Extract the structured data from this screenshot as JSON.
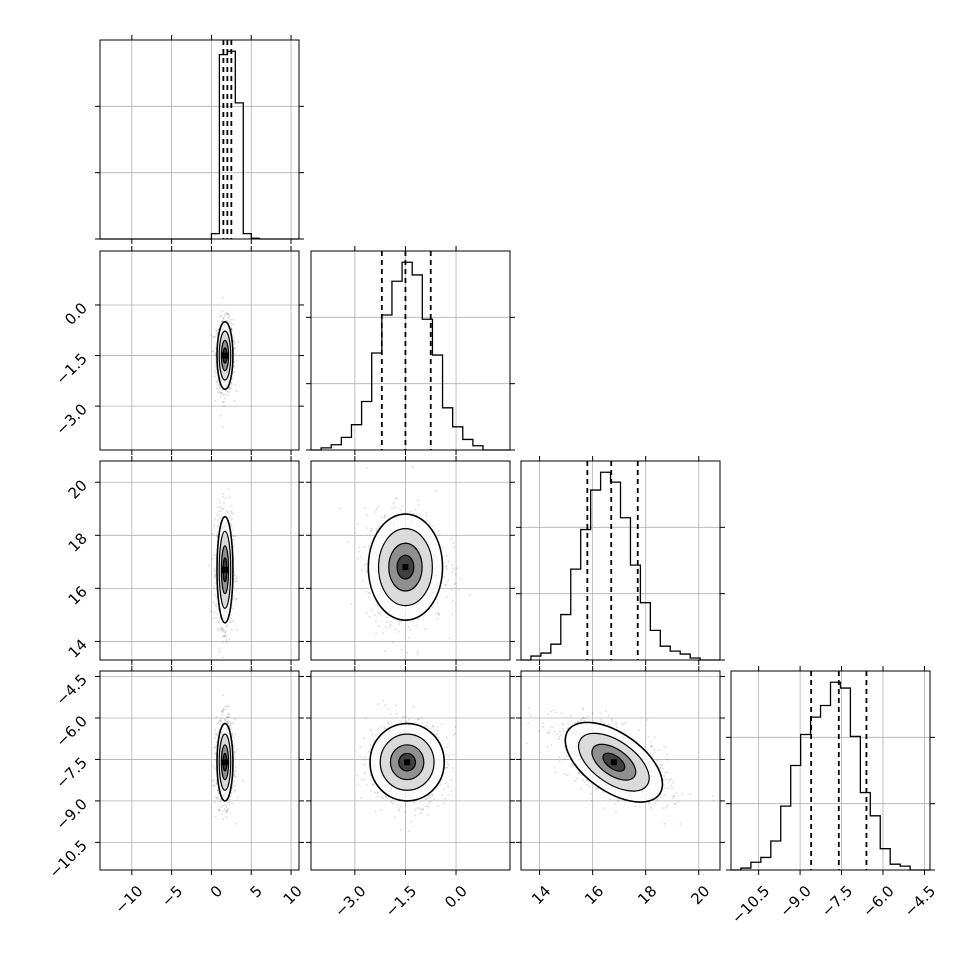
{
  "chart_data": {
    "type": "corner",
    "grid": true,
    "params": [
      {
        "range": [
          -14,
          11
        ],
        "ticks": [
          -10,
          -5,
          0,
          5,
          10
        ],
        "tick_labels": [
          "−10",
          "−5",
          "0",
          "5",
          "10"
        ],
        "quantiles": [
          1.5,
          2.0,
          2.5
        ]
      },
      {
        "range": [
          -4.3,
          1.6
        ],
        "ticks": [
          -3.0,
          -1.5,
          0.0
        ],
        "tick_labels": [
          "−3.0",
          "−1.5",
          "0.0"
        ],
        "quantiles": [
          -2.2,
          -1.5,
          -0.75
        ]
      },
      {
        "range": [
          13.3,
          20.8
        ],
        "ticks": [
          14,
          16,
          18,
          20
        ],
        "tick_labels": [
          "14",
          "16",
          "18",
          "20"
        ],
        "quantiles": [
          15.8,
          16.7,
          17.7
        ]
      },
      {
        "range": [
          -11.5,
          -4.3
        ],
        "ticks": [
          -10.5,
          -9.0,
          -7.5,
          -6.0,
          -4.5
        ],
        "tick_labels": [
          "−10.5",
          "−9.0",
          "−7.5",
          "−6.0",
          "−4.5"
        ],
        "quantiles": [
          -8.6,
          -7.6,
          -6.6
        ]
      }
    ],
    "histograms": [
      {
        "edges": [
          -14,
          -13,
          -12,
          -11,
          -10,
          -9,
          -8,
          -7,
          -6,
          -5,
          -4,
          -3,
          -2,
          -1,
          0,
          1,
          2,
          3,
          4,
          5,
          6,
          7,
          8,
          9,
          10,
          11
        ],
        "counts": [
          0,
          0,
          0,
          0,
          0,
          0,
          0,
          0,
          0,
          0,
          0,
          0,
          0,
          0,
          80,
          2750,
          2800,
          2030,
          80,
          10,
          0,
          0,
          0,
          0,
          0
        ]
      },
      {
        "edges": [
          -4.3,
          -4.0,
          -3.7,
          -3.4,
          -3.1,
          -2.8,
          -2.5,
          -2.2,
          -1.9,
          -1.6,
          -1.3,
          -1.0,
          -0.7,
          -0.4,
          -0.1,
          0.2,
          0.5,
          0.8,
          1.1,
          1.4,
          1.6
        ],
        "counts": [
          0,
          10,
          25,
          60,
          120,
          230,
          460,
          640,
          800,
          890,
          830,
          620,
          450,
          200,
          110,
          50,
          20,
          0,
          0,
          0
        ]
      },
      {
        "edges": [
          13.3,
          13.675,
          14.05,
          14.425,
          14.8,
          15.175,
          15.55,
          15.925,
          16.3,
          16.675,
          17.05,
          17.425,
          17.8,
          18.175,
          18.55,
          18.925,
          19.3,
          19.675,
          20.05,
          20.425,
          20.8
        ],
        "counts": [
          0,
          20,
          35,
          80,
          230,
          460,
          660,
          860,
          950,
          900,
          720,
          480,
          290,
          150,
          70,
          45,
          30,
          10,
          0,
          0
        ]
      },
      {
        "edges": [
          -11.5,
          -11.14,
          -10.78,
          -10.42,
          -10.06,
          -9.7,
          -9.34,
          -8.98,
          -8.62,
          -8.26,
          -7.9,
          -7.54,
          -7.18,
          -6.82,
          -6.46,
          -6.1,
          -5.74,
          -5.38,
          -5.02,
          -4.66,
          -4.3
        ],
        "counts": [
          0,
          10,
          40,
          65,
          150,
          330,
          540,
          700,
          790,
          850,
          970,
          940,
          690,
          400,
          280,
          110,
          30,
          20,
          0,
          0
        ]
      }
    ],
    "pairs": [
      {
        "x": 0,
        "y": 1,
        "center": [
          1.7,
          -1.5
        ],
        "sd": [
          0.5,
          0.5
        ],
        "rho": 0.0
      },
      {
        "x": 0,
        "y": 2,
        "center": [
          1.7,
          16.7
        ],
        "sd": [
          0.5,
          1.0
        ],
        "rho": 0.0
      },
      {
        "x": 1,
        "y": 2,
        "center": [
          -1.5,
          16.8
        ],
        "sd": [
          0.55,
          1.0
        ],
        "rho": 0.0
      },
      {
        "x": 0,
        "y": 3,
        "center": [
          1.7,
          -7.6
        ],
        "sd": [
          0.5,
          0.7
        ],
        "rho": 0.0
      },
      {
        "x": 1,
        "y": 3,
        "center": [
          -1.45,
          -7.6
        ],
        "sd": [
          0.55,
          0.7
        ],
        "rho": 0.0
      },
      {
        "x": 2,
        "y": 3,
        "center": [
          16.8,
          -7.6
        ],
        "sd": [
          1.0,
          0.7
        ],
        "rho": -0.55
      }
    ]
  }
}
